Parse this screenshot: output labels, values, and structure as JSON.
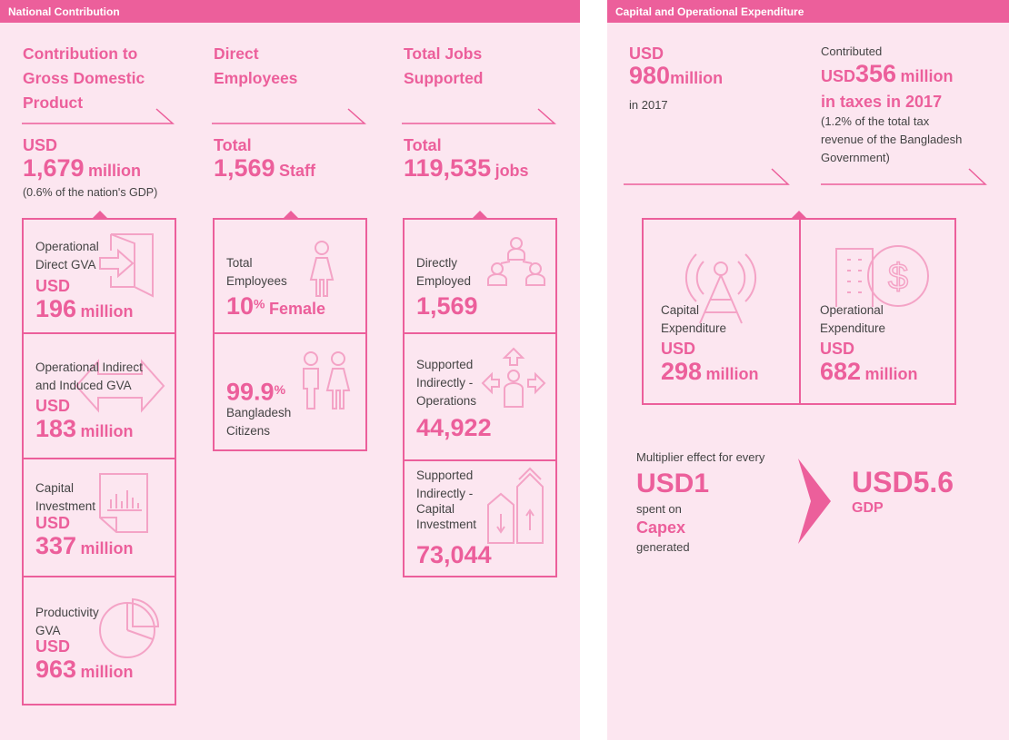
{
  "national": {
    "header": "National Contribution",
    "gdp": {
      "title_1": "Contribution to",
      "title_2": "Gross Domestic",
      "title_3": "Product",
      "prefix": "USD",
      "value": "1,679",
      "unit": "million",
      "note": "(0.6% of the nation's GDP)",
      "items": [
        {
          "label_1": "Operational",
          "label_2": "Direct GVA",
          "prefix": "USD",
          "value": "196",
          "unit": "million"
        },
        {
          "label_1": "Operational Indirect",
          "label_2": "and Induced GVA",
          "prefix": "USD",
          "value": "183",
          "unit": "million"
        },
        {
          "label_1": "Capital",
          "label_2": "Investment",
          "prefix": "USD",
          "value": "337",
          "unit": "million"
        },
        {
          "label_1": "Productivity",
          "label_2": "GVA",
          "prefix": "USD",
          "value": "963",
          "unit": "million"
        }
      ]
    },
    "employees": {
      "title_1": "Direct",
      "title_2": "Employees",
      "prefix": "Total",
      "value": "1,569",
      "unit": "Staff",
      "items": [
        {
          "label_1": "Total",
          "label_2": "Employees",
          "value": "10",
          "sup": "%",
          "unit": "Female"
        },
        {
          "value": "99.9",
          "sup": "%",
          "label_1": "Bangladesh",
          "label_2": "Citizens"
        }
      ]
    },
    "jobs": {
      "title_1": "Total Jobs",
      "title_2": "Supported",
      "prefix": "Total",
      "value": "119,535",
      "unit": "jobs",
      "items": [
        {
          "label_1": "Directly",
          "label_2": "Employed",
          "value": "1,569"
        },
        {
          "label_1": "Supported",
          "label_2": "Indirectly -",
          "label_3": "Operations",
          "value": "44,922"
        },
        {
          "label_1": "Supported",
          "label_2": "Indirectly -",
          "label_3": "Capital",
          "label_4": "Investment",
          "value": "73,044"
        }
      ]
    }
  },
  "capex": {
    "header": "Capital and Operational Expenditure",
    "total": {
      "prefix": "USD",
      "value": "980",
      "unit": "million",
      "note": "in 2017"
    },
    "taxes": {
      "intro": "Contributed",
      "prefix": "USD",
      "value": "356",
      "unit": "million",
      "line2": "in taxes in 2017",
      "note_1": "(1.2% of the total tax",
      "note_2": "revenue of the Bangladesh",
      "note_3": "Government)"
    },
    "items": [
      {
        "label_1": "Capital",
        "label_2": "Expenditure",
        "prefix": "USD",
        "value": "298",
        "unit": "million"
      },
      {
        "label_1": "Operational",
        "label_2": "Expenditure",
        "prefix": "USD",
        "value": "682",
        "unit": "million"
      }
    ],
    "multiplier": {
      "intro": "Multiplier effect for every",
      "amount": "USD1",
      "spent": "spent on",
      "category": "Capex",
      "generated": "generated",
      "result": "USD5.6",
      "result_label": "GDP"
    }
  },
  "colors": {
    "accent": "#ec5f9b",
    "background": "#fce6f0",
    "icon": "#f4a3c6"
  }
}
